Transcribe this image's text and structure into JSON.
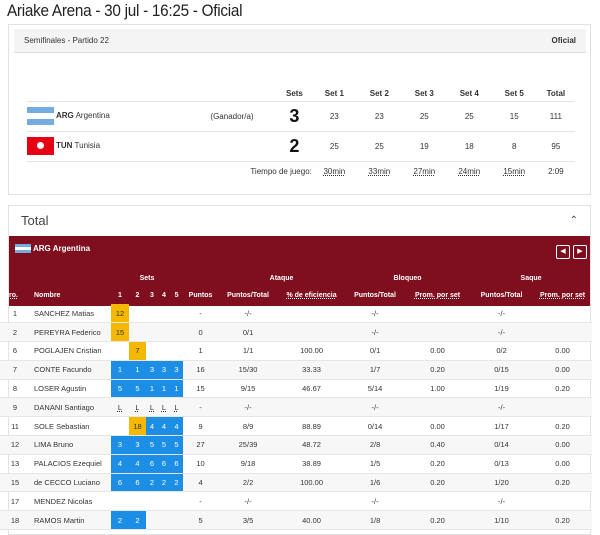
{
  "title": "Ariake Arena - 30 jul - 16:25 - Oficial",
  "match": {
    "round": "Semifinales  - Partido 22",
    "status": "Oficial",
    "headers": [
      "Sets",
      "Set 1",
      "Set 2",
      "Set 3",
      "Set 4",
      "Set 5",
      "Total"
    ],
    "teams": [
      {
        "code": "ARG",
        "name": "Argentina",
        "flag": "argentina-flag",
        "note": "(Ganador/a)",
        "sets": "3",
        "scores": [
          "23",
          "23",
          "25",
          "25",
          "15"
        ],
        "total": "111"
      },
      {
        "code": "TUN",
        "name": "Tunisia",
        "flag": "tunisia-flag",
        "note": "",
        "sets": "2",
        "scores": [
          "25",
          "25",
          "19",
          "18",
          "8"
        ],
        "total": "95"
      }
    ],
    "time_label": "Tiempo de juego:",
    "times": [
      "30min",
      "33min",
      "27min",
      "24min",
      "15min"
    ],
    "total_time": "2:09"
  },
  "stats": {
    "section_title": "Total",
    "team": "ARG Argentina",
    "colors": {
      "band": "#7f0f1f",
      "starter": "#1d8ee6",
      "sub": "#f5b800"
    },
    "headers": {
      "nro": "Nro.",
      "nombre": "Nombre",
      "sets": "Sets",
      "set_nums": [
        "1",
        "2",
        "3",
        "4",
        "5"
      ],
      "puntos": "Puntos",
      "ataque": "Ataque",
      "bloqueo": "Bloqueo",
      "saque": "Saque",
      "pt": "Puntos/Total",
      "eff": "% de eficiencia",
      "prom": "Prom. por set"
    },
    "rows": [
      {
        "nro": "1",
        "name": "SANCHEZ Matias",
        "sets": [
          [
            "12",
            "y"
          ],
          [
            "",
            ""
          ],
          [
            "",
            ""
          ],
          [
            "",
            ""
          ],
          [
            "",
            ""
          ]
        ],
        "pts": "-",
        "atk": "-/-",
        "eff": "",
        "blk": "-/-",
        "blkp": "",
        "srv": "-/-",
        "srvp": ""
      },
      {
        "nro": "2",
        "name": "PEREYRA Federico",
        "sets": [
          [
            "15",
            "y"
          ],
          [
            "",
            ""
          ],
          [
            "",
            ""
          ],
          [
            "",
            ""
          ],
          [
            "",
            ""
          ]
        ],
        "pts": "0",
        "atk": "0/1",
        "eff": "",
        "blk": "-/-",
        "blkp": "",
        "srv": "-/-",
        "srvp": ""
      },
      {
        "nro": "6",
        "name": "POGLAJEN Cristian",
        "sets": [
          [
            "",
            ""
          ],
          [
            "7",
            "y"
          ],
          [
            "",
            ""
          ],
          [
            "",
            ""
          ],
          [
            "",
            ""
          ]
        ],
        "pts": "1",
        "atk": "1/1",
        "eff": "100.00",
        "blk": "0/1",
        "blkp": "0.00",
        "srv": "0/2",
        "srvp": "0.00"
      },
      {
        "nro": "7",
        "name": "CONTE Facundo",
        "sets": [
          [
            "1",
            "b"
          ],
          [
            "1",
            "b"
          ],
          [
            "3",
            "b"
          ],
          [
            "3",
            "b"
          ],
          [
            "3",
            "b"
          ]
        ],
        "pts": "16",
        "atk": "15/30",
        "eff": "33.33",
        "blk": "1/7",
        "blkp": "0.20",
        "srv": "0/15",
        "srvp": "0.00"
      },
      {
        "nro": "8",
        "name": "LOSER Agustin",
        "sets": [
          [
            "5",
            "b"
          ],
          [
            "5",
            "b"
          ],
          [
            "1",
            "b"
          ],
          [
            "1",
            "b"
          ],
          [
            "1",
            "b"
          ]
        ],
        "pts": "15",
        "atk": "9/15",
        "eff": "46.67",
        "blk": "5/14",
        "blkp": "1.00",
        "srv": "1/19",
        "srvp": "0.20"
      },
      {
        "nro": "9",
        "name": "DANANI Santiago",
        "sets": [
          [
            "L",
            "l"
          ],
          [
            "L",
            "l"
          ],
          [
            "L",
            "l"
          ],
          [
            "L",
            "l"
          ],
          [
            "L",
            "l"
          ]
        ],
        "pts": "-",
        "atk": "-/-",
        "eff": "",
        "blk": "-/-",
        "blkp": "",
        "srv": "-/-",
        "srvp": ""
      },
      {
        "nro": "11",
        "name": "SOLE Sebastian",
        "sets": [
          [
            "",
            ""
          ],
          [
            "18",
            "y"
          ],
          [
            "4",
            "b"
          ],
          [
            "4",
            "b"
          ],
          [
            "4",
            "b"
          ]
        ],
        "pts": "9",
        "atk": "8/9",
        "eff": "88.89",
        "blk": "0/14",
        "blkp": "0.00",
        "srv": "1/17",
        "srvp": "0.20"
      },
      {
        "nro": "12",
        "name": "LIMA Bruno",
        "sets": [
          [
            "3",
            "b"
          ],
          [
            "3",
            "b"
          ],
          [
            "5",
            "b"
          ],
          [
            "5",
            "b"
          ],
          [
            "5",
            "b"
          ]
        ],
        "pts": "27",
        "atk": "25/39",
        "eff": "48.72",
        "blk": "2/8",
        "blkp": "0.40",
        "srv": "0/14",
        "srvp": "0.00"
      },
      {
        "nro": "13",
        "name": "PALACIOS Ezequiel",
        "sets": [
          [
            "4",
            "b"
          ],
          [
            "4",
            "b"
          ],
          [
            "6",
            "b"
          ],
          [
            "6",
            "b"
          ],
          [
            "6",
            "b"
          ]
        ],
        "pts": "10",
        "atk": "9/18",
        "eff": "38.89",
        "blk": "1/5",
        "blkp": "0.20",
        "srv": "0/13",
        "srvp": "0.00"
      },
      {
        "nro": "15",
        "name": "de CECCO Luciano",
        "sets": [
          [
            "6",
            "b"
          ],
          [
            "6",
            "b"
          ],
          [
            "2",
            "b"
          ],
          [
            "2",
            "b"
          ],
          [
            "2",
            "b"
          ]
        ],
        "pts": "4",
        "atk": "2/2",
        "eff": "100.00",
        "blk": "1/6",
        "blkp": "0.20",
        "srv": "1/20",
        "srvp": "0.20"
      },
      {
        "nro": "17",
        "name": "MENDEZ Nicolas",
        "sets": [
          [
            "",
            ""
          ],
          [
            "",
            ""
          ],
          [
            "",
            ""
          ],
          [
            "",
            ""
          ],
          [
            "",
            ""
          ]
        ],
        "pts": "-",
        "atk": "-/-",
        "eff": "",
        "blk": "-/-",
        "blkp": "",
        "srv": "-/-",
        "srvp": ""
      },
      {
        "nro": "18",
        "name": "RAMOS Martin",
        "sets": [
          [
            "2",
            "b"
          ],
          [
            "2",
            "b"
          ],
          [
            "",
            ""
          ],
          [
            "",
            ""
          ],
          [
            "",
            ""
          ]
        ],
        "pts": "5",
        "atk": "3/5",
        "eff": "40.00",
        "blk": "1/8",
        "blkp": "0.20",
        "srv": "1/10",
        "srvp": "0.20"
      }
    ]
  }
}
